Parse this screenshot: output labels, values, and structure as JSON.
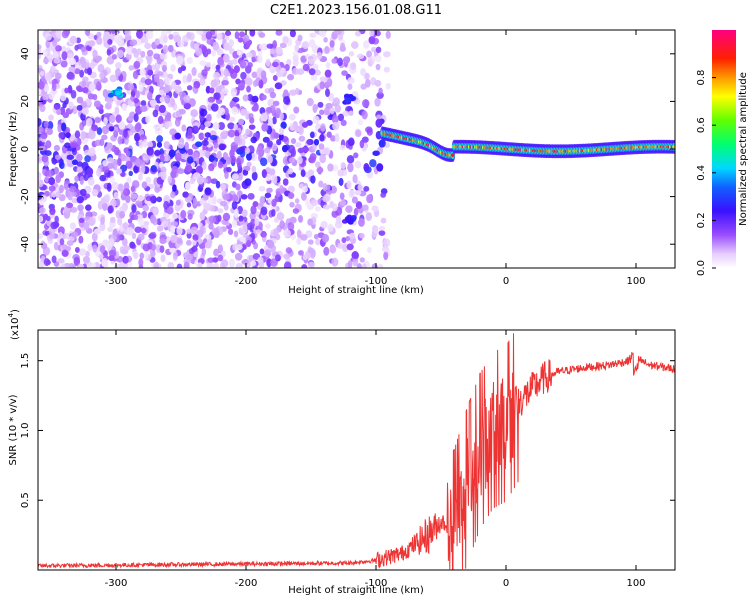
{
  "title": "C2E1.2023.156.01.08.G11",
  "chart_data": [
    {
      "type": "heatmap",
      "xlabel": "Height of straight line (km)",
      "ylabel": "Frequency (Hz)",
      "xlim": [
        -360,
        130
      ],
      "ylim": [
        -50,
        50
      ],
      "x_ticks": [
        -300,
        -200,
        -100,
        0,
        100
      ],
      "y_ticks": [
        -40,
        -20,
        0,
        20,
        40
      ],
      "colorbar": {
        "label": "Normalized spectral amplitude",
        "range": [
          0,
          1
        ],
        "ticks": [
          0.0,
          0.2,
          0.4,
          0.6,
          0.8
        ],
        "colormap": "white-purple-blue-cyan-green-yellow-red-magenta"
      },
      "features": [
        {
          "x_range": [
            -360,
            -90
          ],
          "y_range": [
            -50,
            50
          ],
          "amplitude": [
            0.05,
            0.3
          ]
        },
        {
          "x": -300,
          "y": 24,
          "amplitude": 0.4
        },
        {
          "x": -120,
          "y": 21,
          "amplitude": 0.25
        },
        {
          "x": -120,
          "y": -30,
          "amplitude": 0.25
        },
        {
          "x_range": [
            -95,
            130
          ],
          "y_center": 0,
          "amplitude": [
            0.4,
            0.95
          ]
        }
      ]
    },
    {
      "type": "line",
      "xlabel": "Height of straight line (km)",
      "ylabel": "SNR (10 * v/v)",
      "ylabel_multiplier": "(x10",
      "ylabel_multiplier_exp": "4",
      "ylabel_multiplier_close": ")",
      "xlim": [
        -360,
        130
      ],
      "ylim": [
        0,
        1.72
      ],
      "x_ticks": [
        -300,
        -200,
        -100,
        0,
        100
      ],
      "y_ticks": [
        0.5,
        1.0,
        1.5
      ],
      "y_tick_labels": [
        "0.5",
        "1.0",
        "1.5"
      ],
      "color": "#ee3333",
      "x": [
        -360,
        -120,
        -100,
        -80,
        -60,
        -50,
        -40,
        -30,
        -20,
        -10,
        0,
        10,
        20,
        30,
        40,
        60,
        80,
        95,
        100,
        110,
        130
      ],
      "y": [
        0.03,
        0.05,
        0.07,
        0.12,
        0.25,
        0.35,
        0.3,
        0.6,
        0.85,
        1.0,
        1.05,
        1.2,
        1.3,
        1.38,
        1.42,
        1.45,
        1.47,
        1.5,
        1.52,
        1.47,
        1.44
      ]
    }
  ]
}
